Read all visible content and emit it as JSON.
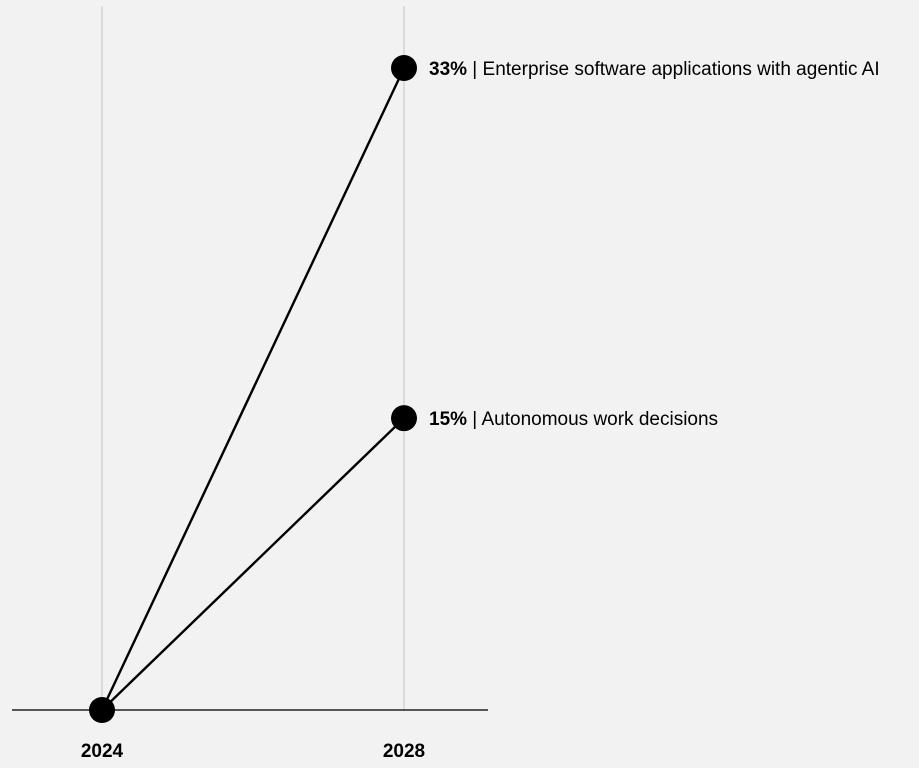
{
  "chart_data": {
    "type": "line",
    "x": [
      "2024",
      "2028"
    ],
    "ylim": [
      0,
      33
    ],
    "grid": "vertical",
    "series": [
      {
        "name": "Enterprise software applications with agentic AI",
        "values": [
          0,
          33
        ],
        "value_label": "33%"
      },
      {
        "name": "Autonomous work decisions",
        "values": [
          0,
          15
        ],
        "value_label": "15%"
      }
    ],
    "separator": "|"
  },
  "colors": {
    "background": "#f2f2f2",
    "gridline": "#cccccc",
    "axis": "#222222",
    "line": "#000000",
    "marker": "#000000"
  }
}
